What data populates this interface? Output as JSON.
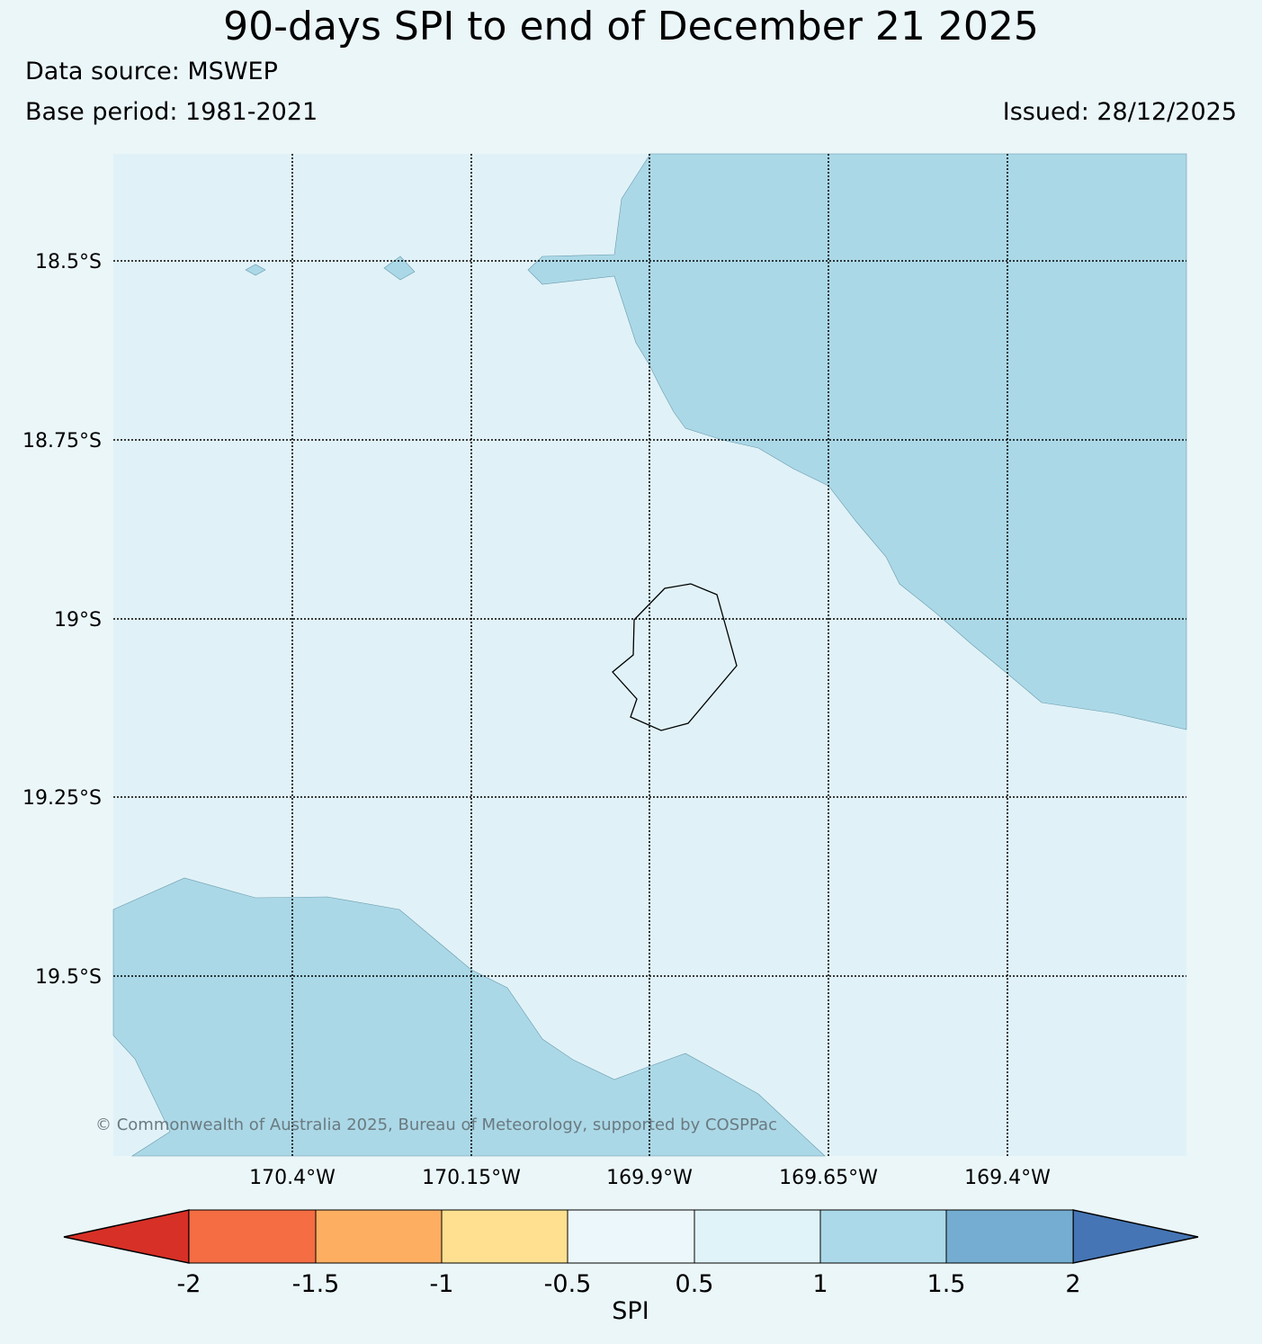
{
  "title": "90-days SPI to end of December 21 2025",
  "data_source": "Data source: MSWEP",
  "base_period": "Base period: 1981-2021",
  "issued": "Issued: 28/12/2025",
  "credit": "© Commonwealth of Australia 2025, Bureau of Meteorology, supported by COSPPac",
  "map": {
    "lat_labels": [
      "18.5°S",
      "18.75°S",
      "19°S",
      "19.25°S",
      "19.5°S"
    ],
    "lon_labels": [
      "170.4°W",
      "170.15°W",
      "169.9°W",
      "169.65°W",
      "169.4°W"
    ],
    "background_class_color": "#e0f2f8",
    "wet_class_color": "#abd8e7",
    "coastline_color": "#000000"
  },
  "colorbar": {
    "label": "SPI",
    "ticks": [
      "-2",
      "-1.5",
      "-1",
      "-0.5",
      "0.5",
      "1",
      "1.5",
      "2"
    ],
    "under_color": "#d73027",
    "over_color": "#4575b4",
    "colors": [
      "#f46d43",
      "#fdae61",
      "#fee090",
      "#ecf7fb",
      "#e0f3f8",
      "#abd9e9",
      "#74add1"
    ]
  }
}
